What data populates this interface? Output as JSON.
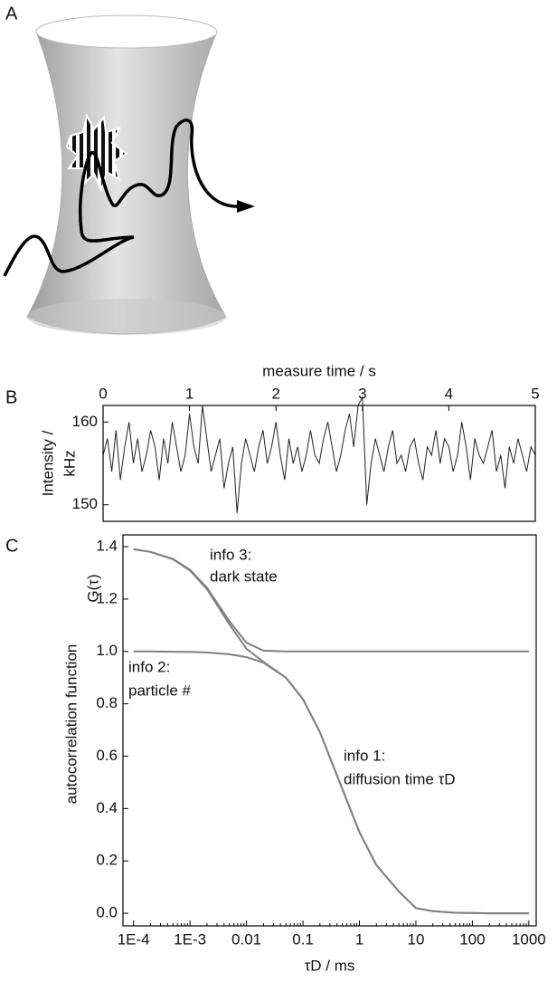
{
  "panel_labels": [
    "A",
    "B",
    "C"
  ],
  "chart_data": [
    {
      "type": "line",
      "xlabel": "measure time / s",
      "ylabel": [
        "Intensity /",
        "kHz"
      ],
      "xlim": [
        0,
        5
      ],
      "xticks": [
        0,
        1,
        2,
        3,
        4,
        5
      ],
      "ylim": [
        148,
        162
      ],
      "yticks": [
        150,
        160
      ],
      "x": [
        0,
        0.05,
        0.1,
        0.15,
        0.2,
        0.25,
        0.3,
        0.35,
        0.4,
        0.45,
        0.5,
        0.55,
        0.6,
        0.65,
        0.7,
        0.75,
        0.8,
        0.85,
        0.9,
        0.95,
        1,
        1.05,
        1.1,
        1.15,
        1.2,
        1.25,
        1.3,
        1.35,
        1.4,
        1.45,
        1.5,
        1.55,
        1.6,
        1.65,
        1.7,
        1.75,
        1.8,
        1.85,
        1.9,
        1.95,
        2,
        2.05,
        2.1,
        2.15,
        2.2,
        2.25,
        2.3,
        2.35,
        2.4,
        2.45,
        2.5,
        2.55,
        2.6,
        2.65,
        2.7,
        2.75,
        2.8,
        2.85,
        2.9,
        2.95,
        3,
        3.05,
        3.1,
        3.15,
        3.2,
        3.25,
        3.3,
        3.35,
        3.4,
        3.45,
        3.5,
        3.55,
        3.6,
        3.65,
        3.7,
        3.75,
        3.8,
        3.85,
        3.9,
        3.95,
        4,
        4.05,
        4.1,
        4.15,
        4.2,
        4.25,
        4.3,
        4.35,
        4.4,
        4.45,
        4.5,
        4.55,
        4.6,
        4.65,
        4.7,
        4.75,
        4.8,
        4.85,
        4.9,
        4.95,
        5
      ],
      "series": [
        {
          "color": "#222222",
          "values": [
            156,
            158,
            154,
            159,
            153,
            157,
            160,
            155,
            158,
            154,
            156,
            159,
            157,
            153,
            158,
            155,
            160,
            157,
            154,
            156,
            161,
            157,
            155,
            162,
            158,
            154,
            156,
            158,
            152,
            155,
            157,
            149,
            155,
            158,
            156,
            154,
            157,
            159,
            155,
            157,
            160,
            156,
            153,
            158,
            155,
            157,
            154,
            156,
            159,
            156,
            155,
            158,
            160,
            157,
            154,
            156,
            159,
            161,
            157,
            162,
            163,
            150,
            155,
            158,
            156,
            154,
            157,
            159,
            155,
            156,
            154,
            157,
            158,
            155,
            153,
            157,
            156,
            159,
            155,
            158,
            157,
            154,
            156,
            160,
            157,
            153,
            158,
            156,
            155,
            157,
            159,
            154,
            156,
            152,
            157,
            155,
            158,
            156,
            154,
            157,
            156
          ]
        }
      ]
    },
    {
      "type": "line",
      "xscale": "log",
      "xlabel": "τD / ms",
      "ylabel": "autocorrelation function",
      "ylabel2": "G(τ)",
      "annotations": [
        "info 3:",
        "dark state",
        "info 2:",
        "particle #",
        "info 1:",
        "diffusion time τD"
      ],
      "xlim": [
        6.5e-05,
        1350
      ],
      "xticks": [
        {
          "value": 0.0001,
          "label": "1E-4"
        },
        {
          "value": 0.001,
          "label": "1E-3"
        },
        0.01,
        0.1,
        1,
        10,
        100,
        1000
      ],
      "ylim": [
        -0.048,
        1.445
      ],
      "yticks": [
        {
          "value": 0,
          "label": "0.0"
        },
        0.2,
        0.4,
        0.6,
        0.8,
        {
          "value": 1,
          "label": "1.0"
        },
        1.2,
        1.4
      ],
      "x": [
        0.0001,
        0.0002,
        0.0005,
        0.001,
        0.002,
        0.005,
        0.01,
        0.02,
        0.05,
        0.1,
        0.2,
        0.5,
        1,
        2,
        5,
        10,
        20,
        50,
        100,
        200,
        500,
        1000
      ],
      "series": [
        {
          "color": "#808080",
          "values": [
            1.0,
            1.0,
            0.999,
            0.998,
            0.996,
            0.989,
            0.978,
            0.957,
            0.9,
            0.818,
            0.692,
            0.474,
            0.31,
            0.184,
            0.083,
            0.02,
            0.008,
            0.002,
            0.001,
            0,
            0,
            0
          ]
        },
        {
          "color": "#808080",
          "values": [
            1.39,
            1.38,
            1.353,
            1.312,
            1.243,
            1.115,
            1.033,
            1.003,
            1.0,
            1.0,
            1.0,
            1.0,
            1.0,
            1.0,
            1.0,
            1.0,
            1.0,
            1.0,
            1.0,
            1.0,
            1.0,
            1.0
          ]
        },
        {
          "color": "#808080",
          "values": [
            1.39,
            1.38,
            1.352,
            1.309,
            1.238,
            1.103,
            1.01,
            0.96,
            0.9,
            0.818,
            0.692,
            0.474,
            0.31,
            0.184,
            0.083,
            0.02,
            0.008,
            0.002,
            0.001,
            0,
            0,
            0
          ]
        }
      ]
    }
  ]
}
